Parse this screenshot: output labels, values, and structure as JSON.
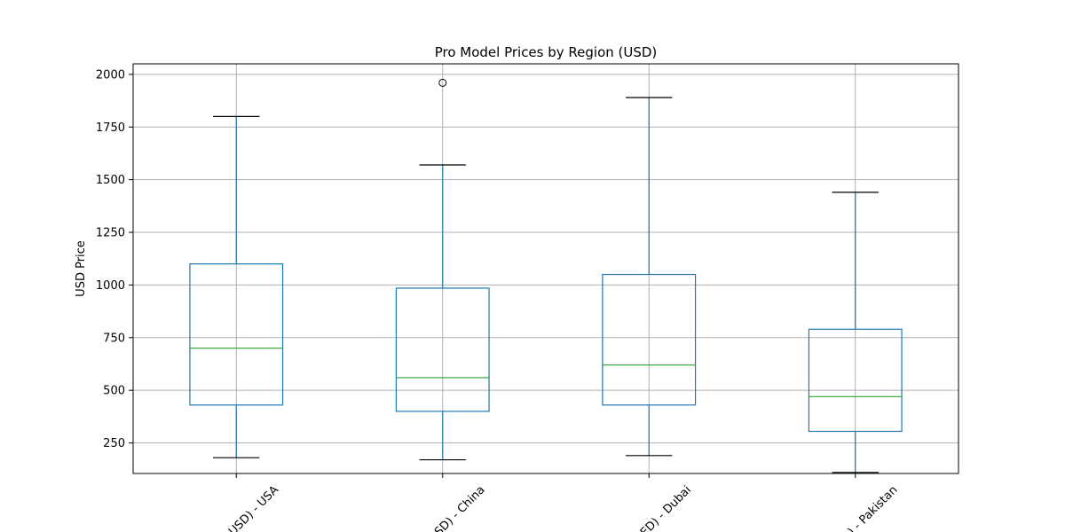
{
  "chart_data": {
    "type": "boxplot",
    "title": "Pro Model Prices by Region (USD)",
    "ylabel": "USD Price",
    "xlabel": "",
    "ylim": [
      105,
      2050
    ],
    "yticks": [
      250,
      500,
      750,
      1000,
      1250,
      1500,
      1750,
      2000
    ],
    "grid": true,
    "categories": [
      "(USD) - USA",
      "(USD) - China",
      "(AED) - Dubai",
      "(PKR) - Pakistan"
    ],
    "visible_category_labels": [
      "USD) - USA",
      "SD) - China",
      "ED) - Dubai",
      ") - Pakistan"
    ],
    "boxes": [
      {
        "whisker_low": 180,
        "q1": 430,
        "median": 700,
        "q3": 1100,
        "whisker_high": 1800,
        "outliers": []
      },
      {
        "whisker_low": 170,
        "q1": 400,
        "median": 560,
        "q3": 985,
        "whisker_high": 1570,
        "outliers": [
          1960
        ]
      },
      {
        "whisker_low": 190,
        "q1": 430,
        "median": 620,
        "q3": 1050,
        "whisker_high": 1890,
        "outliers": []
      },
      {
        "whisker_low": 110,
        "q1": 305,
        "median": 470,
        "q3": 790,
        "whisker_high": 1440,
        "outliers": []
      }
    ],
    "colors": {
      "box": "#1f77b4",
      "median": "#2ca02c",
      "grid": "#b0b0b0",
      "axes": "#000000"
    }
  }
}
